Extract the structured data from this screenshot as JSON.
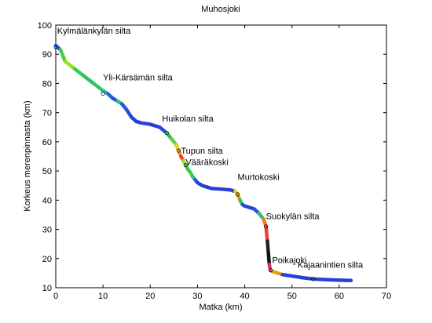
{
  "chart_data": {
    "type": "line",
    "title": "Muhosjoki",
    "xlabel": "Matka (km)",
    "ylabel": "Korkeus merenpinnasta (km)",
    "xlim": [
      0,
      70
    ],
    "ylim": [
      10,
      100
    ],
    "xticks": [
      0,
      10,
      20,
      30,
      40,
      50,
      60,
      70
    ],
    "yticks": [
      10,
      20,
      30,
      40,
      50,
      60,
      70,
      80,
      90,
      100
    ],
    "grid": false,
    "x": [
      0,
      1,
      2,
      4,
      6,
      8,
      10,
      11,
      12,
      13,
      14,
      15,
      16,
      17,
      18,
      20,
      22,
      23.5,
      24.5,
      25.5,
      26,
      26.5,
      27,
      27.5,
      28,
      28.5,
      29,
      29.5,
      30,
      31,
      32,
      33,
      35,
      37,
      38,
      38.5,
      39,
      39.5,
      40,
      41,
      42,
      43,
      44,
      44.5,
      44.8,
      45,
      45.2,
      45.4,
      46,
      48,
      50,
      52,
      54.5,
      57,
      60,
      62.5
    ],
    "y": [
      93,
      91.5,
      87.5,
      85,
      82.5,
      80,
      77.5,
      76.5,
      75,
      74,
      73,
      71,
      68.5,
      67,
      66.5,
      66,
      65,
      63,
      61,
      59,
      57,
      55,
      53.5,
      52,
      50.5,
      49.5,
      48,
      47,
      46,
      45,
      44.5,
      44,
      43.8,
      43.5,
      43,
      42,
      40,
      38.5,
      38,
      37.5,
      37,
      35.5,
      33.5,
      31,
      26,
      22,
      18,
      16,
      15.5,
      14.5,
      14,
      13.5,
      13,
      12.8,
      12.6,
      12.5
    ],
    "colors": [
      "#2850e0",
      "#40d040",
      "#a0e020",
      "#30d050",
      "#28c060",
      "#30c858",
      "#28b8a0",
      "#2860e0",
      "#2850e0",
      "#30c070",
      "#2858e0",
      "#2850e0",
      "#2840d8",
      "#2840d8",
      "#2844d8",
      "#2840d8",
      "#2848e0",
      "#30c050",
      "#60d040",
      "#e0d020",
      "#f09020",
      "#f04030",
      "#a0e020",
      "#40d040",
      "#30c850",
      "#40d040",
      "#30c070",
      "#2850e0",
      "#2840d8",
      "#2840d8",
      "#2840d8",
      "#2840d8",
      "#2840d8",
      "#2848e0",
      "#f0d020",
      "#e0a020",
      "#30c070",
      "#2850e0",
      "#2840d8",
      "#2840d8",
      "#2850e0",
      "#30c070",
      "#f08020",
      "#f04030",
      "#202020",
      "#101010",
      "#e03070",
      "#f04040",
      "#e0a020",
      "#2840d8",
      "#2840d8",
      "#2840d8",
      "#2840d8",
      "#2840d8",
      "#2840d8",
      "#2840d8"
    ],
    "annotations": [
      {
        "label": "Kylmälänkylän silta",
        "x": 0,
        "y": 92.5,
        "tx": 0.3,
        "ty": 97
      },
      {
        "label": "Yli-Kärsämän silta",
        "x": 10,
        "y": 76.5,
        "tx": 10,
        "ty": 81
      },
      {
        "label": "Huikolan silta",
        "x": 23.5,
        "y": 63,
        "tx": 22.5,
        "ty": 67
      },
      {
        "label": "Tupun silta",
        "x": 26,
        "y": 57,
        "tx": 26.5,
        "ty": 56
      },
      {
        "label": "Vääräkoski",
        "x": 27.5,
        "y": 52,
        "tx": 27.5,
        "ty": 52
      },
      {
        "label": "Murtokoski",
        "x": 38.5,
        "y": 42,
        "tx": 38.5,
        "ty": 47
      },
      {
        "label": "Suokylän silta",
        "x": 44.5,
        "y": 31,
        "tx": 44.5,
        "ty": 33.5
      },
      {
        "label": "Poikajoki",
        "x": 45.5,
        "y": 16,
        "tx": 45.8,
        "ty": 18.5
      },
      {
        "label": "Kajaanintien silta",
        "x": 54.5,
        "y": 13,
        "tx": 51.2,
        "ty": 16.8
      }
    ],
    "colors_meta": {
      "line_width_note": "thick colored profile line"
    }
  }
}
